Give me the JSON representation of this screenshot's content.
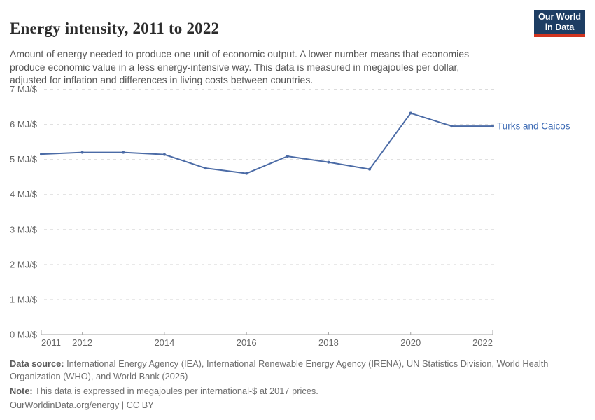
{
  "header": {
    "title": "Energy intensity, 2011 to 2022",
    "subtitle": "Amount of energy needed to produce one unit of economic output. A lower number means that economies produce economic value in a less energy-intensive way. This data is measured in megajoules per dollar, adjusted for inflation and differences in living costs between countries.",
    "logo": {
      "line1": "Our World",
      "line2": "in Data"
    }
  },
  "chart_data": {
    "type": "line",
    "title": "Energy intensity, 2011 to 2022",
    "x": [
      2011,
      2012,
      2013,
      2014,
      2015,
      2016,
      2017,
      2018,
      2019,
      2020,
      2021,
      2022
    ],
    "series": [
      {
        "name": "Turks and Caicos",
        "values": [
          5.15,
          5.2,
          5.2,
          5.14,
          4.75,
          4.6,
          5.09,
          4.92,
          4.72,
          6.32,
          5.95,
          5.95
        ],
        "color": "#4b6ba6",
        "label_color": "#3d6bb5"
      }
    ],
    "unit": "MJ/$",
    "xlabel": "",
    "ylabel": "",
    "xlim": [
      2011,
      2022
    ],
    "ylim": [
      0,
      7
    ],
    "x_ticks": [
      2011,
      2012,
      2014,
      2016,
      2018,
      2020,
      2022
    ],
    "y_ticks": [
      {
        "value": 0,
        "label": "0 MJ/$"
      },
      {
        "value": 1,
        "label": "1 MJ/$"
      },
      {
        "value": 2,
        "label": "2 MJ/$"
      },
      {
        "value": 3,
        "label": "3 MJ/$"
      },
      {
        "value": 4,
        "label": "4 MJ/$"
      },
      {
        "value": 5,
        "label": "5 MJ/$"
      },
      {
        "value": 6,
        "label": "6 MJ/$"
      },
      {
        "value": 7,
        "label": "7 MJ/$"
      }
    ],
    "grid": "horizontal-dashed",
    "legend_position": "end-of-line-label"
  },
  "colors": {
    "line": "#4b6ba6",
    "series_label": "#3d6bb5",
    "grid": "#dcdcdc",
    "axis": "#a5a5a5",
    "tick_text": "#666666",
    "logo_bg": "#1d3d63",
    "logo_stripe": "#d1341f"
  },
  "footer": {
    "data_source_label": "Data source:",
    "data_source_text": "International Energy Agency (IEA), International Renewable Energy Agency (IRENA), UN Statistics Division, World Health Organization (WHO), and World Bank (2025)",
    "note_label": "Note:",
    "note_text": "This data is expressed in megajoules per international-$ at 2017 prices.",
    "license_line": "OurWorldinData.org/energy | CC BY"
  }
}
